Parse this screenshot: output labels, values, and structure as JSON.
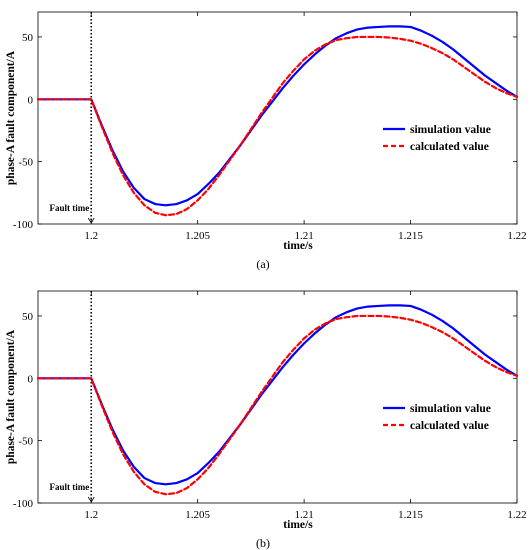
{
  "chart_data": [
    {
      "type": "line",
      "panel_label": "(a)",
      "xlabel": "time/s",
      "ylabel": "phase-A fault component/A",
      "xlim": [
        1.1975,
        1.22
      ],
      "ylim": [
        -100,
        70
      ],
      "xticks": [
        1.2,
        1.205,
        1.21,
        1.215,
        1.22
      ],
      "xtick_labels": [
        "1.2",
        "1.205",
        "1.21",
        "1.215",
        "1.22"
      ],
      "yticks": [
        -100,
        -50,
        0,
        50
      ],
      "ytick_labels": [
        "-100",
        "-50",
        "0",
        "50"
      ],
      "legend_position": "center-right",
      "annotation": {
        "text": "Fault time",
        "x": 1.2
      },
      "series": [
        {
          "name": "simulation value",
          "color": "#0000ff",
          "style": "solid",
          "x": [
            1.1975,
            1.198,
            1.199,
            1.2,
            1.2005,
            1.201,
            1.2015,
            1.202,
            1.2025,
            1.203,
            1.2035,
            1.204,
            1.2045,
            1.205,
            1.2055,
            1.206,
            1.2065,
            1.207,
            1.2075,
            1.208,
            1.2085,
            1.209,
            1.2095,
            1.21,
            1.2105,
            1.211,
            1.2115,
            1.212,
            1.2125,
            1.213,
            1.2135,
            1.214,
            1.2145,
            1.215,
            1.2155,
            1.216,
            1.2165,
            1.217,
            1.2175,
            1.218,
            1.2185,
            1.219,
            1.2195,
            1.22
          ],
          "y": [
            0,
            0,
            0,
            0,
            -21,
            -41,
            -58,
            -71,
            -80,
            -84,
            -85,
            -84,
            -81,
            -76,
            -68,
            -59,
            -48,
            -37,
            -25,
            -13,
            -2,
            9,
            19,
            28,
            36,
            43,
            49,
            53,
            56,
            57.5,
            58,
            58.5,
            58.5,
            58,
            55,
            51,
            46,
            40,
            33,
            26,
            19,
            13,
            7,
            2
          ]
        },
        {
          "name": "calculated value",
          "color": "#ff0000",
          "style": "dashed",
          "x": [
            1.1975,
            1.198,
            1.199,
            1.2,
            1.2005,
            1.201,
            1.2015,
            1.202,
            1.2025,
            1.203,
            1.2035,
            1.204,
            1.2045,
            1.205,
            1.2055,
            1.206,
            1.2065,
            1.207,
            1.2075,
            1.208,
            1.2085,
            1.209,
            1.2095,
            1.21,
            1.2105,
            1.211,
            1.2115,
            1.212,
            1.2125,
            1.213,
            1.2135,
            1.214,
            1.2145,
            1.215,
            1.2155,
            1.216,
            1.2165,
            1.217,
            1.2175,
            1.218,
            1.2185,
            1.219,
            1.2195,
            1.22
          ],
          "y": [
            0,
            0,
            0,
            0,
            -22,
            -43,
            -61,
            -75,
            -85,
            -91,
            -93,
            -92,
            -88,
            -81,
            -72,
            -61,
            -49,
            -37,
            -24,
            -11,
            1,
            13,
            23,
            32,
            39,
            44,
            47.5,
            49,
            50,
            50,
            50,
            49.5,
            48.5,
            47,
            44.5,
            41,
            37,
            32,
            26,
            20,
            14,
            9,
            5,
            2
          ]
        }
      ]
    },
    {
      "type": "line",
      "panel_label": "(b)",
      "xlabel": "time/s",
      "ylabel": "phase-A fault component/A",
      "xlim": [
        1.1975,
        1.22
      ],
      "ylim": [
        -100,
        70
      ],
      "xticks": [
        1.2,
        1.205,
        1.21,
        1.215,
        1.22
      ],
      "xtick_labels": [
        "1.2",
        "1.205",
        "1.21",
        "1.215",
        "1.22"
      ],
      "yticks": [
        -100,
        -50,
        0,
        50
      ],
      "ytick_labels": [
        "-100",
        "-50",
        "0",
        "50"
      ],
      "legend_position": "center-right",
      "annotation": {
        "text": "Fault time",
        "x": 1.2
      },
      "series": [
        {
          "name": "simulation value",
          "color": "#0000ff",
          "style": "solid",
          "x": [
            1.1975,
            1.198,
            1.199,
            1.2,
            1.2005,
            1.201,
            1.2015,
            1.202,
            1.2025,
            1.203,
            1.2035,
            1.204,
            1.2045,
            1.205,
            1.2055,
            1.206,
            1.2065,
            1.207,
            1.2075,
            1.208,
            1.2085,
            1.209,
            1.2095,
            1.21,
            1.2105,
            1.211,
            1.2115,
            1.212,
            1.2125,
            1.213,
            1.2135,
            1.214,
            1.2145,
            1.215,
            1.2155,
            1.216,
            1.2165,
            1.217,
            1.2175,
            1.218,
            1.2185,
            1.219,
            1.2195,
            1.22
          ],
          "y": [
            0,
            0,
            0,
            0,
            -21,
            -41,
            -58,
            -71,
            -80,
            -84,
            -85,
            -84,
            -81,
            -76,
            -68,
            -59,
            -48,
            -37,
            -25,
            -13,
            -2,
            9,
            19,
            28,
            36,
            43,
            49,
            53,
            56,
            57.5,
            58,
            58.5,
            58.5,
            58,
            55,
            51,
            46,
            40,
            33,
            26,
            19,
            13,
            7,
            2
          ]
        },
        {
          "name": "calculated value",
          "color": "#ff0000",
          "style": "dashed",
          "x": [
            1.1975,
            1.198,
            1.199,
            1.2,
            1.2005,
            1.201,
            1.2015,
            1.202,
            1.2025,
            1.203,
            1.2035,
            1.204,
            1.2045,
            1.205,
            1.2055,
            1.206,
            1.2065,
            1.207,
            1.2075,
            1.208,
            1.2085,
            1.209,
            1.2095,
            1.21,
            1.2105,
            1.211,
            1.2115,
            1.212,
            1.2125,
            1.213,
            1.2135,
            1.214,
            1.2145,
            1.215,
            1.2155,
            1.216,
            1.2165,
            1.217,
            1.2175,
            1.218,
            1.2185,
            1.219,
            1.2195,
            1.22
          ],
          "y": [
            0,
            0,
            0,
            0,
            -22,
            -43,
            -61,
            -75,
            -85,
            -91,
            -93,
            -92,
            -88,
            -81,
            -72,
            -61,
            -49,
            -37,
            -24,
            -11,
            1,
            13,
            23,
            32,
            39,
            44,
            47.5,
            49,
            50,
            50,
            50,
            49.5,
            48.5,
            47,
            44.5,
            41,
            37,
            32,
            26,
            20,
            14,
            9,
            5,
            2
          ]
        }
      ]
    }
  ]
}
